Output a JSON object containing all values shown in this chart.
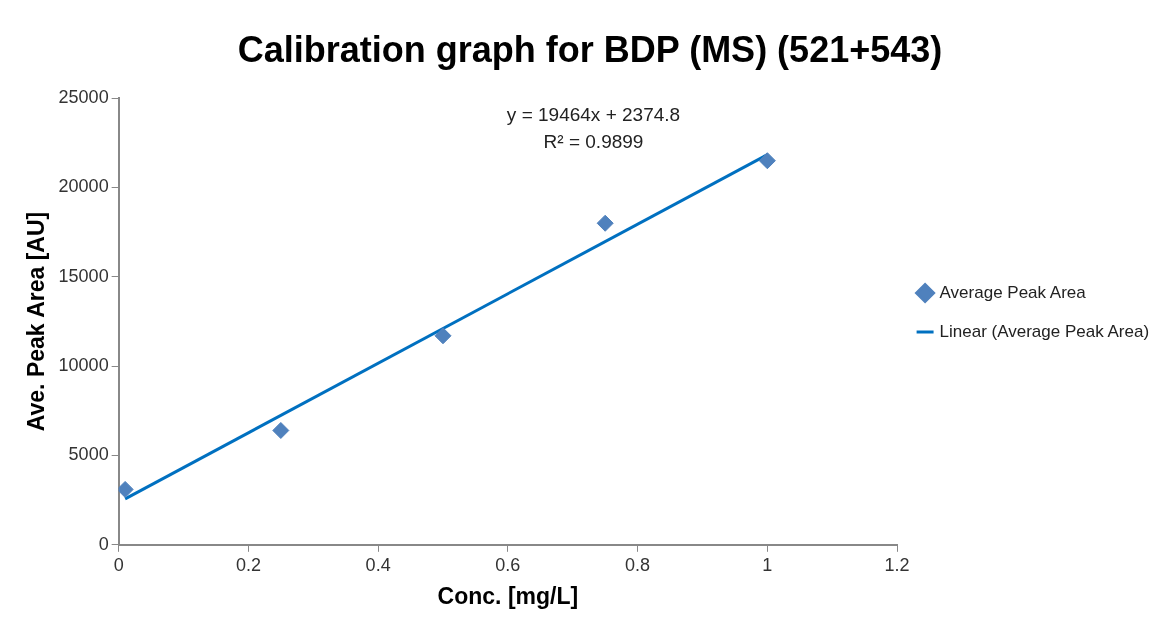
{
  "chart_data": {
    "type": "scatter",
    "title": "Calibration graph for BDP (MS) (521+543)",
    "xlabel": "Conc. [mg/L]",
    "ylabel": "Ave. Peak Area [AU]",
    "annotations": [
      "y = 19464x + 2374.8",
      "R² = 0.9899"
    ],
    "series": [
      {
        "name": "Average Peak Area",
        "color": "#4f81bd",
        "marker": "diamond",
        "x": [
          0.01,
          0.25,
          0.5,
          0.75,
          1
        ],
        "values": [
          3100,
          6400,
          11700,
          18000,
          21500
        ]
      },
      {
        "name": "Linear (Average Peak Area)",
        "type": "line",
        "color": "#0070c0",
        "marker": "none",
        "x": [
          0.01,
          1
        ],
        "values": [
          2570,
          21840
        ]
      }
    ],
    "xlim": [
      0,
      1.2
    ],
    "xticks": [
      0,
      0.2,
      0.4,
      0.6,
      0.8,
      1,
      1.2
    ],
    "ylim": [
      0,
      25000
    ],
    "yticks": [
      0,
      5000,
      10000,
      15000,
      20000,
      25000
    ],
    "grid": false,
    "legend": "right"
  }
}
